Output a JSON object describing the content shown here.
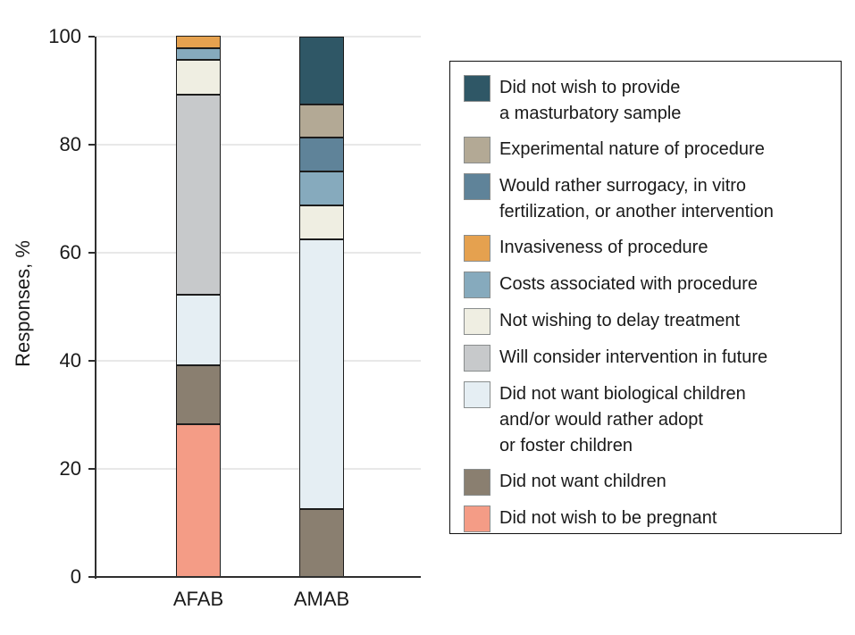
{
  "figure": {
    "background": "#ffffff",
    "axis_color": "#2f2f2f",
    "gridline_color": "#e8e8e8"
  },
  "chart_data": {
    "type": "bar",
    "stacked": true,
    "title": "",
    "xlabel": "",
    "ylabel": "Responses, %",
    "ylim": [
      0,
      100
    ],
    "yticks": [
      0,
      20,
      40,
      60,
      80,
      100
    ],
    "grid": "horizontal",
    "legend_position": "right",
    "categories": [
      "AFAB",
      "AMAB"
    ],
    "stack_order": "bottom-to-top equals reverse of series order",
    "series": [
      {
        "name": "Did not wish to provide a masturbatory sample",
        "color": "#2f5766",
        "values": [
          0,
          12.5
        ]
      },
      {
        "name": "Experimental nature of procedure",
        "color": "#b3a995",
        "values": [
          0,
          6.25
        ]
      },
      {
        "name": "Would rather surrogacy, in vitro fertilization, or another intervention",
        "color": "#5f8399",
        "values": [
          0,
          6.25
        ]
      },
      {
        "name": "Invasiveness of procedure",
        "color": "#e5a14f",
        "values": [
          2.2,
          0
        ]
      },
      {
        "name": "Costs associated with procedure",
        "color": "#86aabd",
        "values": [
          2.2,
          6.25
        ]
      },
      {
        "name": "Not wishing to delay treatment",
        "color": "#efeee2",
        "values": [
          6.5,
          6.25
        ]
      },
      {
        "name": "Will consider intervention in future",
        "color": "#c7c9cb",
        "values": [
          37.0,
          0
        ]
      },
      {
        "name": "Did not want biological children and/or would rather adopt or foster children",
        "color": "#e5eef3",
        "values": [
          13.0,
          50.0
        ]
      },
      {
        "name": "Did not want children",
        "color": "#8a7f70",
        "values": [
          10.9,
          12.5
        ]
      },
      {
        "name": "Did not wish to be pregnant",
        "color": "#f49c86",
        "values": [
          28.3,
          0
        ]
      }
    ]
  },
  "legend": {
    "items": [
      {
        "series_index": 0,
        "lines": [
          "Did not wish to provide",
          "a masturbatory sample"
        ]
      },
      {
        "series_index": 1,
        "lines": [
          "Experimental nature of procedure"
        ]
      },
      {
        "series_index": 2,
        "lines": [
          "Would rather surrogacy, in vitro",
          "fertilization, or another intervention"
        ]
      },
      {
        "series_index": 3,
        "lines": [
          "Invasiveness of procedure"
        ]
      },
      {
        "series_index": 4,
        "lines": [
          "Costs associated with procedure"
        ]
      },
      {
        "series_index": 5,
        "lines": [
          "Not wishing to delay treatment"
        ]
      },
      {
        "series_index": 6,
        "lines": [
          "Will consider intervention in future"
        ]
      },
      {
        "series_index": 7,
        "lines": [
          "Did not want biological children",
          "and/or would rather adopt",
          "or foster children"
        ]
      },
      {
        "series_index": 8,
        "lines": [
          "Did not want children"
        ]
      },
      {
        "series_index": 9,
        "lines": [
          "Did not wish to be pregnant"
        ]
      }
    ]
  }
}
